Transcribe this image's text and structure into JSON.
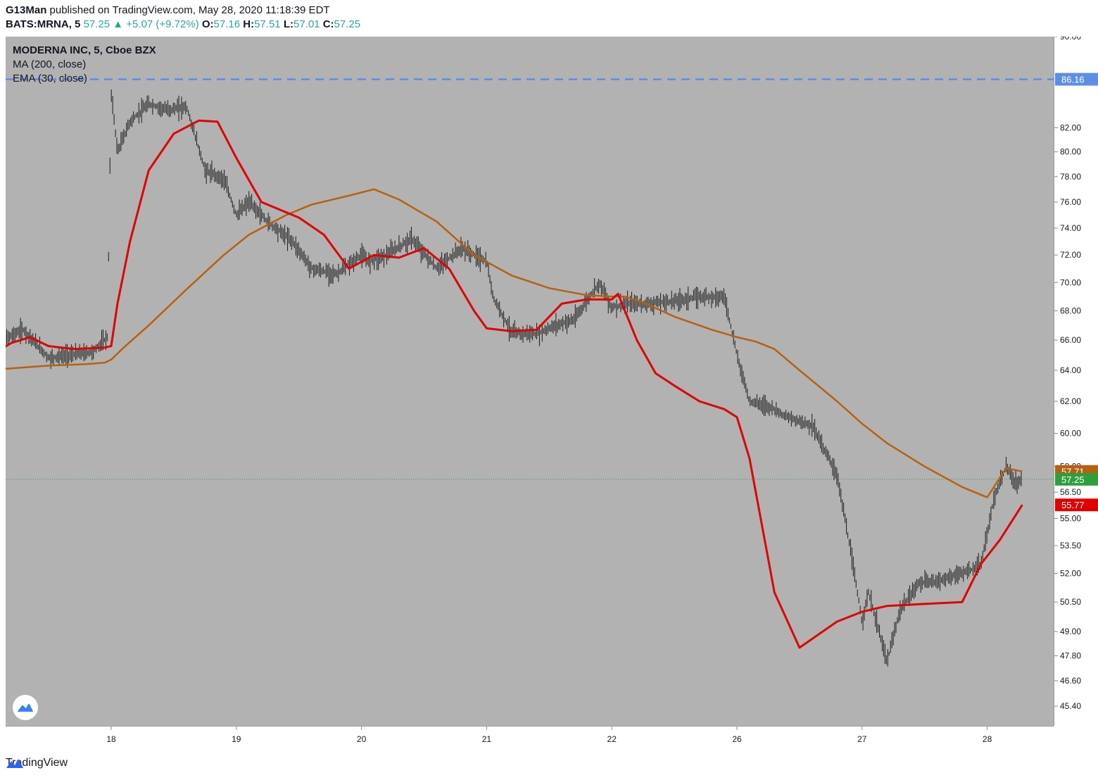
{
  "header": {
    "publisher": "G13Man",
    "published_text": "published on TradingView.com, May 28, 2020 11:18:39 EDT",
    "symbol": "BATS:MRNA, 5",
    "last": "57.25",
    "change": "▲ +5.07 (+9.72%)",
    "o_label": "O:",
    "o_value": "57.16",
    "h_label": "H:",
    "h_value": "57.51",
    "l_label": "L:",
    "l_value": "57.01",
    "c_label": "C:",
    "c_value": "57.25"
  },
  "legend": {
    "title": "MODERNA INC, 5, Cboe BZX",
    "ma": "MA (200, close)",
    "ema": "EMA (30, close)"
  },
  "footer": {
    "brand": "TradingView"
  },
  "colors": {
    "plot_bg": "#b2b2b2",
    "candle": "#1a1a1a",
    "ma": "#b8600f",
    "ema": "#e00000",
    "hline": "#5b8ee6",
    "last_price": "#2e9e3e"
  },
  "chart_data": {
    "type": "line",
    "y_scale": "log",
    "ylim": [
      44.5,
      90
    ],
    "y_ticks": [
      45.4,
      46.6,
      47.8,
      49.0,
      50.5,
      52.0,
      53.5,
      55.0,
      56.5,
      58.0,
      60.0,
      62.0,
      64.0,
      66.0,
      68.0,
      70.0,
      72.0,
      74.0,
      76.0,
      78.0,
      80.0,
      82.0,
      90.0
    ],
    "y_tick_labels": [
      "45.40",
      "46.60",
      "47.80",
      "49.00",
      "50.50",
      "52.00",
      "53.50",
      "55.00",
      "56.50",
      "58.00",
      "60.00",
      "62.00",
      "64.00",
      "66.00",
      "68.00",
      "70.00",
      "72.00",
      "74.00",
      "76.00",
      "78.00",
      "80.00",
      "82.00",
      "90.00"
    ],
    "xlim": [
      0,
      8.34
    ],
    "x_ticks": [
      1,
      2,
      3,
      4,
      5,
      6,
      7,
      8
    ],
    "x_tick_labels": [
      "18",
      "19",
      "20",
      "21",
      "22",
      "26",
      "27",
      "28"
    ],
    "series": [
      {
        "name": "MA (200, close)",
        "x": [
          0,
          0.5,
          0.8,
          0.95,
          1.0,
          1.1,
          1.3,
          1.6,
          1.9,
          2.1,
          2.4,
          2.6,
          2.9,
          3.1,
          3.3,
          3.6,
          3.9,
          4.2,
          4.5,
          4.8,
          5.0,
          5.1,
          5.25,
          5.5,
          5.8,
          6.0,
          6.15,
          6.3,
          6.5,
          6.8,
          7.0,
          7.2,
          7.5,
          7.8,
          8.0,
          8.15,
          8.28
        ],
        "values": [
          64.0,
          64.3,
          64.4,
          64.5,
          64.7,
          65.5,
          67.0,
          69.5,
          72.0,
          73.5,
          75.0,
          75.8,
          76.5,
          77.0,
          76.2,
          74.5,
          72.0,
          70.5,
          69.6,
          69.1,
          69.0,
          69.0,
          68.6,
          67.6,
          66.7,
          66.2,
          65.9,
          65.4,
          64.0,
          62.0,
          60.6,
          59.4,
          58.0,
          56.8,
          56.2,
          57.9,
          57.71
        ]
      },
      {
        "name": "EMA (30, close)",
        "x": [
          0,
          0.2,
          0.35,
          0.5,
          0.7,
          0.95,
          1.0,
          1.05,
          1.15,
          1.3,
          1.5,
          1.7,
          1.85,
          2.0,
          2.2,
          2.5,
          2.7,
          2.9,
          3.1,
          3.3,
          3.5,
          3.7,
          3.9,
          4.0,
          4.2,
          4.4,
          4.6,
          4.8,
          5.0,
          5.05,
          5.2,
          5.35,
          5.5,
          5.7,
          5.9,
          6.0,
          6.1,
          6.3,
          6.5,
          6.8,
          7.0,
          7.2,
          7.5,
          7.8,
          7.95,
          8.1,
          8.28
        ],
        "values": [
          64.8,
          65.8,
          66.2,
          65.6,
          65.4,
          65.5,
          65.6,
          68.5,
          73.0,
          78.5,
          81.5,
          82.6,
          82.5,
          79.5,
          76.0,
          74.8,
          73.5,
          71.0,
          72.0,
          71.8,
          72.5,
          71.0,
          68.0,
          66.8,
          66.6,
          66.7,
          68.5,
          68.8,
          68.8,
          69.2,
          66.0,
          63.8,
          63.0,
          62.0,
          61.5,
          61.0,
          58.5,
          51.0,
          48.2,
          49.5,
          50.0,
          50.3,
          50.4,
          50.5,
          52.5,
          53.8,
          55.77
        ]
      },
      {
        "name": "",
        "type": "candlestick",
        "x": [
          0,
          0.3,
          0.5,
          0.65,
          0.85,
          0.97,
          1.0,
          1.05,
          1.15,
          1.3,
          1.45,
          1.6,
          1.75,
          1.9,
          2.0,
          2.1,
          2.25,
          2.45,
          2.6,
          2.8,
          3.0,
          3.05,
          3.2,
          3.4,
          3.6,
          3.8,
          4.0,
          4.05,
          4.2,
          4.4,
          4.55,
          4.7,
          4.9,
          5.0,
          5.02,
          5.15,
          5.3,
          5.5,
          5.7,
          5.9,
          6.0,
          6.05,
          6.1,
          6.2,
          6.28,
          6.4,
          6.6,
          6.8,
          7.0,
          7.05,
          7.2,
          7.3,
          7.45,
          7.6,
          7.8,
          7.95,
          8.05,
          8.15,
          8.22,
          8.28
        ],
        "values": [
          65.5,
          66.7,
          64.8,
          65.0,
          65.2,
          66.2,
          85.0,
          80.0,
          82.5,
          84.0,
          83.5,
          83.8,
          78.5,
          77.8,
          75.0,
          76.0,
          74.5,
          73.0,
          71.0,
          70.6,
          72.0,
          71.5,
          72.0,
          73.2,
          71.0,
          72.5,
          71.5,
          69.0,
          66.5,
          66.4,
          67.0,
          67.4,
          70.0,
          68.2,
          68.3,
          68.5,
          68.5,
          68.7,
          69.0,
          69.0,
          65.0,
          63.5,
          62.0,
          61.8,
          61.6,
          61.0,
          60.5,
          57.5,
          49.5,
          51.0,
          47.5,
          50.0,
          51.5,
          51.6,
          52.0,
          52.4,
          56.0,
          58.0,
          57.0,
          57.25
        ]
      }
    ],
    "horizontal_lines": [
      {
        "value": 86.16,
        "label": "86.16",
        "style": "dashed"
      },
      {
        "value": 57.25,
        "label": "57.25",
        "style": "dotted"
      }
    ],
    "price_labels": [
      {
        "value": 57.71,
        "label": "57.71"
      },
      {
        "value": 57.25,
        "label": "57.25"
      },
      {
        "value": 55.77,
        "label": "55.77"
      }
    ]
  }
}
